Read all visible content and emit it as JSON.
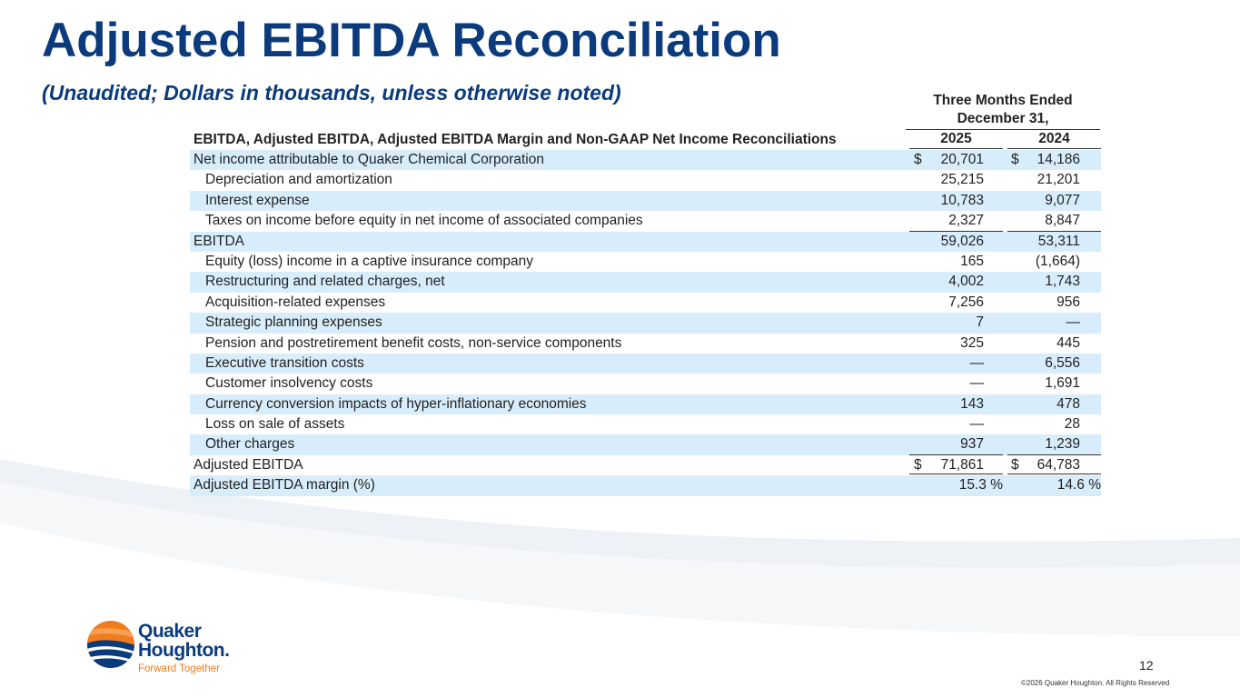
{
  "header": {
    "title": "Adjusted EBITDA Reconciliation",
    "subtitle": "(Unaudited; Dollars in thousands, unless otherwise noted)"
  },
  "table": {
    "period_header": "Three Months Ended December 31,",
    "description_header": "EBITDA, Adjusted EBITDA, Adjusted EBITDA Margin and Non-GAAP Net Income Reconciliations",
    "col1_year": "2025",
    "col2_year": "2024",
    "rows": [
      {
        "label": "Net income attributable to Quaker Chemical Corporation",
        "cur1": "$",
        "v1": "20,701",
        "cur2": "$",
        "v2": "14,186"
      },
      {
        "label": "Depreciation and amortization",
        "cur1": "",
        "v1": "25,215",
        "cur2": "",
        "v2": "21,201"
      },
      {
        "label": "Interest expense",
        "cur1": "",
        "v1": "10,783",
        "cur2": "",
        "v2": "9,077"
      },
      {
        "label": "Taxes on income before equity in net income of associated companies",
        "cur1": "",
        "v1": "2,327",
        "cur2": "",
        "v2": "8,847"
      },
      {
        "label": "EBITDA",
        "cur1": "",
        "v1": "59,026",
        "cur2": "",
        "v2": "53,311"
      },
      {
        "label": "Equity (loss) income in a captive insurance company",
        "cur1": "",
        "v1": "165",
        "cur2": "",
        "v2": "(1,664)"
      },
      {
        "label": "Restructuring and related charges, net",
        "cur1": "",
        "v1": "4,002",
        "cur2": "",
        "v2": "1,743"
      },
      {
        "label": "Acquisition-related expenses",
        "cur1": "",
        "v1": "7,256",
        "cur2": "",
        "v2": "956"
      },
      {
        "label": "Strategic planning expenses",
        "cur1": "",
        "v1": "7",
        "cur2": "",
        "v2": "—"
      },
      {
        "label": "Pension and postretirement benefit costs, non-service components",
        "cur1": "",
        "v1": "325",
        "cur2": "",
        "v2": "445"
      },
      {
        "label": "Executive transition costs",
        "cur1": "",
        "v1": "—",
        "cur2": "",
        "v2": "6,556"
      },
      {
        "label": "Customer insolvency costs",
        "cur1": "",
        "v1": "—",
        "cur2": "",
        "v2": "1,691"
      },
      {
        "label": "Currency conversion impacts of hyper-inflationary economies",
        "cur1": "",
        "v1": "143",
        "cur2": "",
        "v2": "478"
      },
      {
        "label": "Loss on sale of assets",
        "cur1": "",
        "v1": "—",
        "cur2": "",
        "v2": "28"
      },
      {
        "label": "Other charges",
        "cur1": "",
        "v1": "937",
        "cur2": "",
        "v2": "1,239"
      },
      {
        "label": "Adjusted EBITDA",
        "cur1": "$",
        "v1": "71,861",
        "cur2": "$",
        "v2": "64,783"
      },
      {
        "label": "Adjusted EBITDA margin (%)",
        "v1": "15.3 %",
        "v2": "14.6 %"
      }
    ]
  },
  "logo": {
    "line1": "Quaker",
    "line2": "Houghton.",
    "tagline": "Forward Together"
  },
  "footer": {
    "page_number": "12",
    "copyright": "©2026 Quaker Houghton. All Rights Reserved"
  },
  "colors": {
    "brand_blue": "#0b3b7c",
    "brand_orange": "#f07c1b",
    "row_shade": "#d7edfb"
  }
}
